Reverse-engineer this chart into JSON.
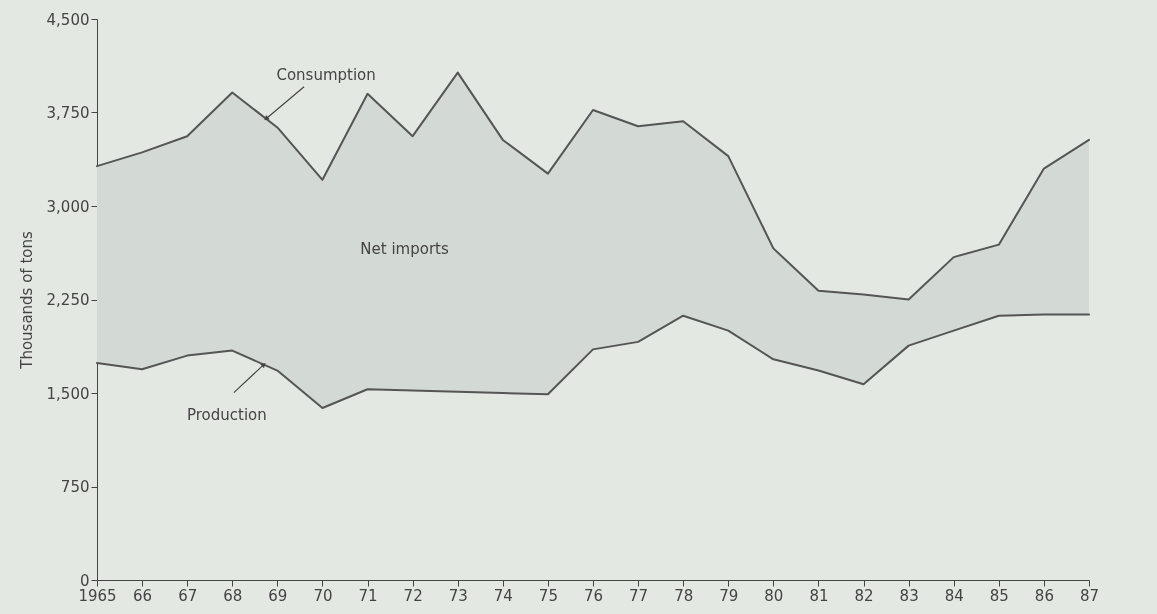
{
  "chart_data": {
    "type": "line",
    "ylabel": "Thousands of tons",
    "x": [
      1965,
      1966,
      1967,
      1968,
      1969,
      1970,
      1971,
      1972,
      1973,
      1974,
      1975,
      1976,
      1977,
      1978,
      1979,
      1980,
      1981,
      1982,
      1983,
      1984,
      1985,
      1986,
      1987
    ],
    "xlim": [
      1965,
      1987
    ],
    "xticks": [
      {
        "value": 1965,
        "label": "1965"
      },
      {
        "value": 1966,
        "label": "66"
      },
      {
        "value": 1967,
        "label": "67"
      },
      {
        "value": 1968,
        "label": "68"
      },
      {
        "value": 1969,
        "label": "69"
      },
      {
        "value": 1970,
        "label": "70"
      },
      {
        "value": 1971,
        "label": "71"
      },
      {
        "value": 1972,
        "label": "72"
      },
      {
        "value": 1973,
        "label": "73"
      },
      {
        "value": 1974,
        "label": "74"
      },
      {
        "value": 1975,
        "label": "75"
      },
      {
        "value": 1976,
        "label": "76"
      },
      {
        "value": 1977,
        "label": "77"
      },
      {
        "value": 1978,
        "label": "78"
      },
      {
        "value": 1979,
        "label": "79"
      },
      {
        "value": 1980,
        "label": "80"
      },
      {
        "value": 1981,
        "label": "81"
      },
      {
        "value": 1982,
        "label": "82"
      },
      {
        "value": 1983,
        "label": "83"
      },
      {
        "value": 1984,
        "label": "84"
      },
      {
        "value": 1985,
        "label": "85"
      },
      {
        "value": 1986,
        "label": "86"
      },
      {
        "value": 1987,
        "label": "87"
      }
    ],
    "ylim": [
      0,
      4500
    ],
    "yticks": [
      0,
      {
        "value": 750,
        "label": "750"
      },
      {
        "value": 1500,
        "label": "1,500"
      },
      {
        "value": 2250,
        "label": "2,250"
      },
      {
        "value": 3000,
        "label": "3,000"
      },
      {
        "value": 3750,
        "label": "3,750"
      },
      {
        "value": 4500,
        "label": "4,500"
      }
    ],
    "series": [
      {
        "name": "Consumption",
        "color": "#555555",
        "values": [
          3320,
          3430,
          3560,
          3910,
          3630,
          3210,
          3900,
          3560,
          4070,
          3530,
          3260,
          3770,
          3640,
          3680,
          3400,
          2660,
          2320,
          2290,
          2250,
          2590,
          2690,
          3300,
          3530
        ],
        "lower": [
          1740,
          1690,
          1800,
          1840,
          1680,
          1380,
          1530,
          1520,
          1510,
          1500,
          1490,
          1850,
          1910,
          2120,
          2000,
          1770,
          1680,
          1570,
          1880,
          2000,
          2120,
          2130,
          2130
        ],
        "upper": [
          3320,
          3430,
          3560,
          3910,
          3630,
          3210,
          3900,
          3560,
          4070,
          3530,
          3260,
          3770,
          3640,
          3680,
          3400,
          2660,
          2320,
          2290,
          2250,
          2590,
          2690,
          3300,
          3530
        ]
      },
      {
        "name": "Production",
        "color": "#555555",
        "values": [
          1740,
          1690,
          1800,
          1840,
          1680,
          1380,
          1530,
          1520,
          1510,
          1500,
          1490,
          1850,
          1910,
          2120,
          2000,
          1770,
          1680,
          1570,
          1880,
          2000,
          2120,
          2130,
          2130
        ]
      }
    ],
    "annotations": [
      "Net imports"
    ],
    "grid": false,
    "legend": false,
    "marker": "none",
    "line_style": "solid"
  }
}
